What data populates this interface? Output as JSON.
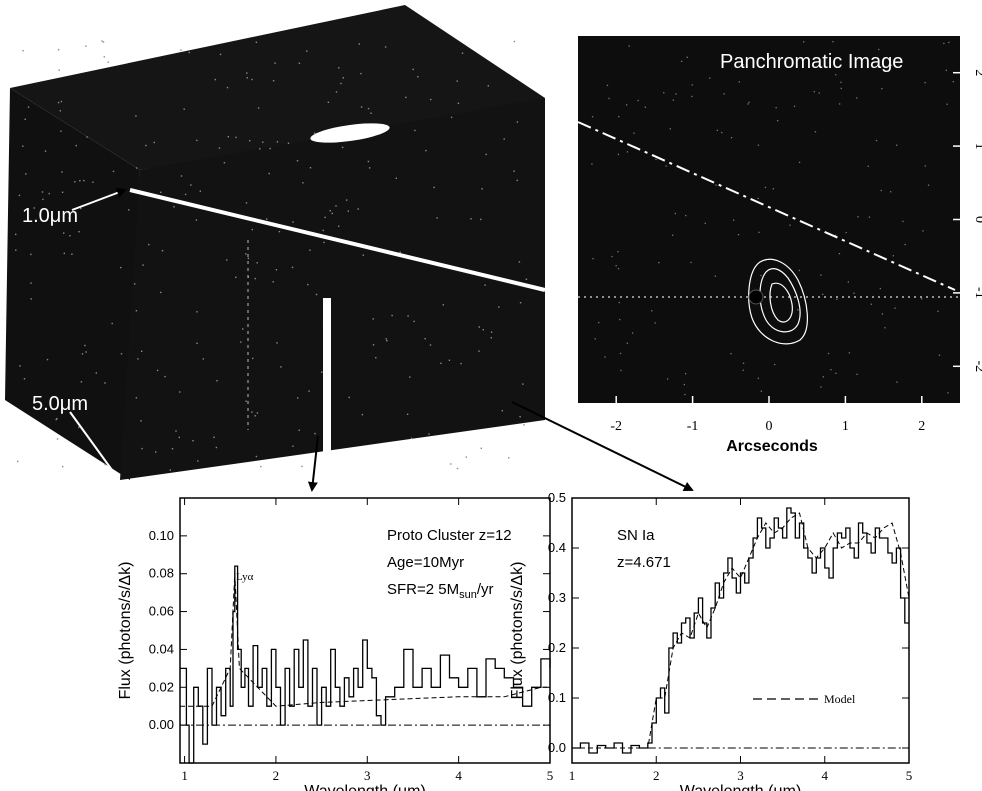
{
  "figure": {
    "cube": {
      "wavelength_labels": [
        "1.0μm",
        "5.0μm"
      ]
    },
    "panchromatic": {
      "title": "Panchromatic Image",
      "xlabel": "Arcseconds"
    }
  },
  "chart_data": [
    {
      "type": "line",
      "panel": "proto-cluster-spectrum",
      "xlabel": "Wavelength (μm)",
      "ylabel": "Flux (photons/s/Δk)",
      "xlim": [
        0.95,
        5.0
      ],
      "ylim": [
        -0.02,
        0.12
      ],
      "xticks": [
        1,
        2,
        3,
        4,
        5
      ],
      "yticks": [
        0.0,
        0.02,
        0.04,
        0.06,
        0.08,
        0.1
      ],
      "ytick_labels": [
        "0.00",
        "0.02",
        "0.04",
        "0.06",
        "0.08",
        "0.10"
      ],
      "annotations": {
        "line1": "Proto Cluster   z=12",
        "line2": "Age=10Myr",
        "sfr_prefix": "SFR=2 5M",
        "sfr_sub": "sun",
        "sfr_suffix": "/yr",
        "lya": "Lyα"
      },
      "series": [
        {
          "style": "solid-step",
          "x": [
            0.95,
            1.02,
            1.05,
            1.1,
            1.15,
            1.2,
            1.25,
            1.3,
            1.35,
            1.4,
            1.45,
            1.5,
            1.53,
            1.55,
            1.58,
            1.62,
            1.66,
            1.7,
            1.75,
            1.8,
            1.85,
            1.9,
            1.95,
            2.0,
            2.05,
            2.1,
            2.15,
            2.2,
            2.25,
            2.3,
            2.35,
            2.4,
            2.45,
            2.5,
            2.55,
            2.6,
            2.65,
            2.7,
            2.75,
            2.8,
            2.85,
            2.9,
            2.95,
            3.0,
            3.05,
            3.1,
            3.15,
            3.2,
            3.3,
            3.4,
            3.5,
            3.6,
            3.7,
            3.8,
            3.9,
            4.0,
            4.1,
            4.2,
            4.3,
            4.4,
            4.5,
            4.6,
            4.7,
            4.8,
            4.9,
            5.0
          ],
          "y": [
            0.03,
            0.0,
            -0.02,
            0.02,
            0.01,
            -0.01,
            0.03,
            0.0,
            0.02,
            0.005,
            0.03,
            0.01,
            0.06,
            0.084,
            0.04,
            0.02,
            0.03,
            0.01,
            0.042,
            0.02,
            0.03,
            0.01,
            0.04,
            0.02,
            0.0,
            0.03,
            0.01,
            0.04,
            0.02,
            0.045,
            0.01,
            0.03,
            0.0,
            0.02,
            0.01,
            0.04,
            0.02,
            0.01,
            0.025,
            0.015,
            0.03,
            0.02,
            0.045,
            0.03,
            0.025,
            0.005,
            0.0,
            0.015,
            0.02,
            0.04,
            0.02,
            0.03,
            0.02,
            0.037,
            0.025,
            0.02,
            0.03,
            0.015,
            0.035,
            0.03,
            0.025,
            0.02,
            0.01,
            0.02,
            0.035,
            0.03
          ]
        },
        {
          "style": "dashed",
          "x": [
            0.95,
            1.3,
            1.5,
            1.55,
            1.6,
            2.0,
            2.5,
            3.0,
            3.5,
            4.0,
            4.5,
            4.9,
            5.0
          ],
          "y": [
            0.01,
            0.01,
            0.03,
            0.08,
            0.03,
            0.01,
            0.012,
            0.013,
            0.014,
            0.015,
            0.015,
            0.02,
            0.02
          ]
        },
        {
          "style": "dash-dot",
          "x": [
            0.95,
            5.0
          ],
          "y": [
            0.0,
            0.0
          ]
        }
      ]
    },
    {
      "type": "line",
      "panel": "sn-ia-spectrum",
      "xlabel": "Wavelength (μm)",
      "ylabel": "Flux (photons/s/Δk)",
      "xlim": [
        1.0,
        5.0
      ],
      "ylim": [
        -0.03,
        0.5
      ],
      "xticks": [
        1,
        2,
        3,
        4,
        5
      ],
      "yticks": [
        0.0,
        0.1,
        0.2,
        0.3,
        0.4,
        0.5
      ],
      "ytick_labels": [
        "0.0",
        "0.1",
        "0.2",
        "0.3",
        "0.4",
        "0.5"
      ],
      "annotations": {
        "line1": "SN Ia",
        "line2": "z=4.671"
      },
      "legend": {
        "label": "Model"
      },
      "series": [
        {
          "style": "solid-step",
          "x": [
            1.0,
            1.1,
            1.2,
            1.3,
            1.4,
            1.5,
            1.6,
            1.7,
            1.8,
            1.9,
            1.95,
            2.0,
            2.05,
            2.1,
            2.15,
            2.2,
            2.25,
            2.3,
            2.35,
            2.4,
            2.45,
            2.5,
            2.55,
            2.6,
            2.65,
            2.7,
            2.75,
            2.8,
            2.85,
            2.9,
            2.95,
            3.0,
            3.05,
            3.1,
            3.15,
            3.2,
            3.25,
            3.3,
            3.35,
            3.4,
            3.45,
            3.5,
            3.55,
            3.6,
            3.65,
            3.7,
            3.75,
            3.8,
            3.85,
            3.9,
            3.95,
            4.0,
            4.05,
            4.1,
            4.15,
            4.2,
            4.25,
            4.3,
            4.35,
            4.4,
            4.45,
            4.5,
            4.55,
            4.6,
            4.65,
            4.7,
            4.75,
            4.8,
            4.85,
            4.9,
            4.95,
            5.0
          ],
          "y": [
            0.0,
            0.01,
            -0.01,
            0.005,
            0.0,
            0.01,
            -0.01,
            0.005,
            0.0,
            0.01,
            0.05,
            0.1,
            0.12,
            0.07,
            0.2,
            0.23,
            0.21,
            0.25,
            0.26,
            0.22,
            0.27,
            0.3,
            0.25,
            0.22,
            0.28,
            0.33,
            0.3,
            0.35,
            0.38,
            0.34,
            0.31,
            0.35,
            0.33,
            0.38,
            0.42,
            0.46,
            0.44,
            0.4,
            0.42,
            0.46,
            0.44,
            0.42,
            0.48,
            0.47,
            0.42,
            0.45,
            0.4,
            0.38,
            0.35,
            0.38,
            0.4,
            0.36,
            0.34,
            0.4,
            0.43,
            0.42,
            0.44,
            0.4,
            0.38,
            0.45,
            0.43,
            0.41,
            0.39,
            0.44,
            0.42,
            0.42,
            0.39,
            0.37,
            0.4,
            0.3,
            0.25,
            0.25
          ]
        },
        {
          "style": "dashed",
          "x": [
            1.0,
            1.9,
            2.0,
            2.1,
            2.2,
            2.3,
            2.4,
            2.5,
            2.6,
            2.7,
            2.8,
            2.9,
            3.0,
            3.1,
            3.2,
            3.3,
            3.4,
            3.5,
            3.6,
            3.7,
            3.8,
            3.9,
            4.0,
            4.1,
            4.2,
            4.3,
            4.4,
            4.5,
            4.6,
            4.7,
            4.8,
            4.9,
            5.0
          ],
          "y": [
            0.0,
            0.0,
            0.1,
            0.1,
            0.2,
            0.23,
            0.22,
            0.27,
            0.24,
            0.28,
            0.33,
            0.36,
            0.34,
            0.38,
            0.42,
            0.45,
            0.43,
            0.44,
            0.46,
            0.47,
            0.4,
            0.38,
            0.4,
            0.43,
            0.4,
            0.41,
            0.41,
            0.43,
            0.42,
            0.44,
            0.45,
            0.39,
            0.3
          ]
        },
        {
          "style": "dash-dot",
          "x": [
            1.9,
            5.0
          ],
          "y": [
            0.0,
            0.0
          ]
        }
      ]
    },
    {
      "type": "heatmap",
      "panel": "panchromatic-image",
      "title": "Panchromatic Image",
      "xlabel": "Arcseconds",
      "xlim": [
        -2.5,
        2.5
      ],
      "ylim": [
        -2.5,
        2.5
      ],
      "xticks": [
        -2,
        -1,
        0,
        1,
        2
      ],
      "yticks": [
        -2,
        -1,
        0,
        1,
        2
      ],
      "tick_labels": [
        "-2",
        "-1",
        "0",
        "1",
        "2"
      ],
      "grid": false
    }
  ]
}
